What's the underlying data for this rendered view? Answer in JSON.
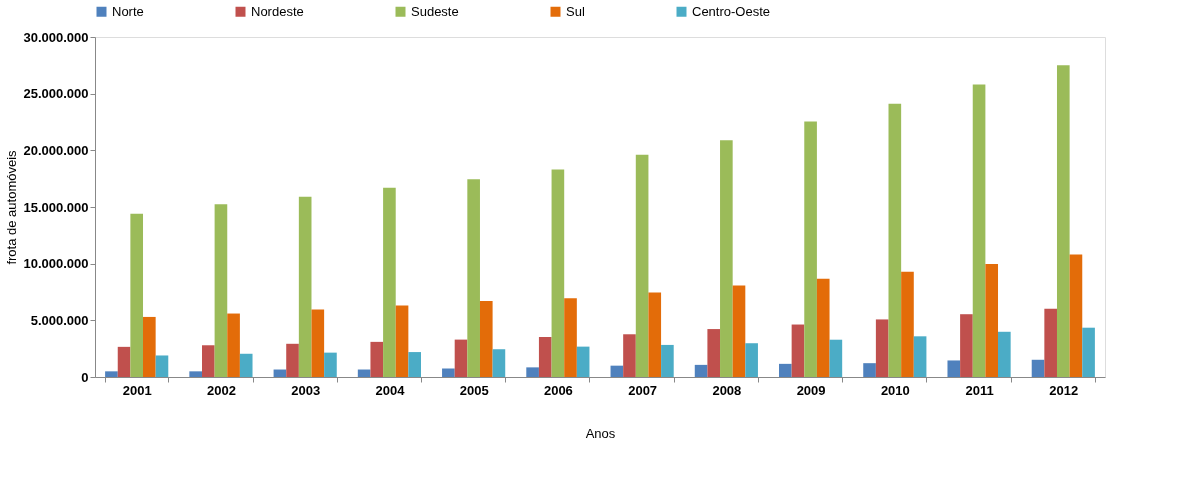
{
  "chart_data": {
    "type": "bar",
    "xlabel": "Anos",
    "ylabel": "frota de automóveis",
    "categories": [
      "2001",
      "2002",
      "2003",
      "2004",
      "2005",
      "2006",
      "2007",
      "2008",
      "2009",
      "2010",
      "2011",
      "2012"
    ],
    "series": [
      {
        "name": "Norte",
        "color": "#4f81bd",
        "values": [
          500000,
          500000,
          660000,
          660000,
          750000,
          850000,
          1000000,
          1070000,
          1160000,
          1220000,
          1460000,
          1520000
        ]
      },
      {
        "name": "Nordeste",
        "color": "#c0504d",
        "values": [
          2660000,
          2800000,
          2930000,
          3100000,
          3300000,
          3530000,
          3770000,
          4230000,
          4630000,
          5080000,
          5540000,
          6030000
        ]
      },
      {
        "name": "Sudeste",
        "color": "#9bbb59",
        "values": [
          14400000,
          15250000,
          15900000,
          16700000,
          17450000,
          18300000,
          19600000,
          20900000,
          22550000,
          24100000,
          25800000,
          27500000
        ]
      },
      {
        "name": "Sul",
        "color": "#e36c09",
        "values": [
          5300000,
          5600000,
          5950000,
          6300000,
          6700000,
          6940000,
          7460000,
          8070000,
          8680000,
          9280000,
          9980000,
          10800000
        ]
      },
      {
        "name": "Centro-Oeste",
        "color": "#4bacc6",
        "values": [
          1900000,
          2050000,
          2150000,
          2200000,
          2450000,
          2680000,
          2830000,
          2980000,
          3290000,
          3590000,
          3990000,
          4350000
        ]
      }
    ],
    "ylim": [
      0,
      30000000
    ],
    "yticks": [
      0,
      {
        "value": 5000000,
        "label": "5.000.000"
      },
      {
        "value": 10000000,
        "label": "10.000.000"
      },
      {
        "value": 15000000,
        "label": "15.000.000"
      },
      {
        "value": 20000000,
        "label": "20.000.000"
      },
      {
        "value": 25000000,
        "label": "25.000.000"
      },
      {
        "value": 30000000,
        "label": "30.000.000"
      }
    ],
    "grid": false,
    "legend": "top"
  }
}
